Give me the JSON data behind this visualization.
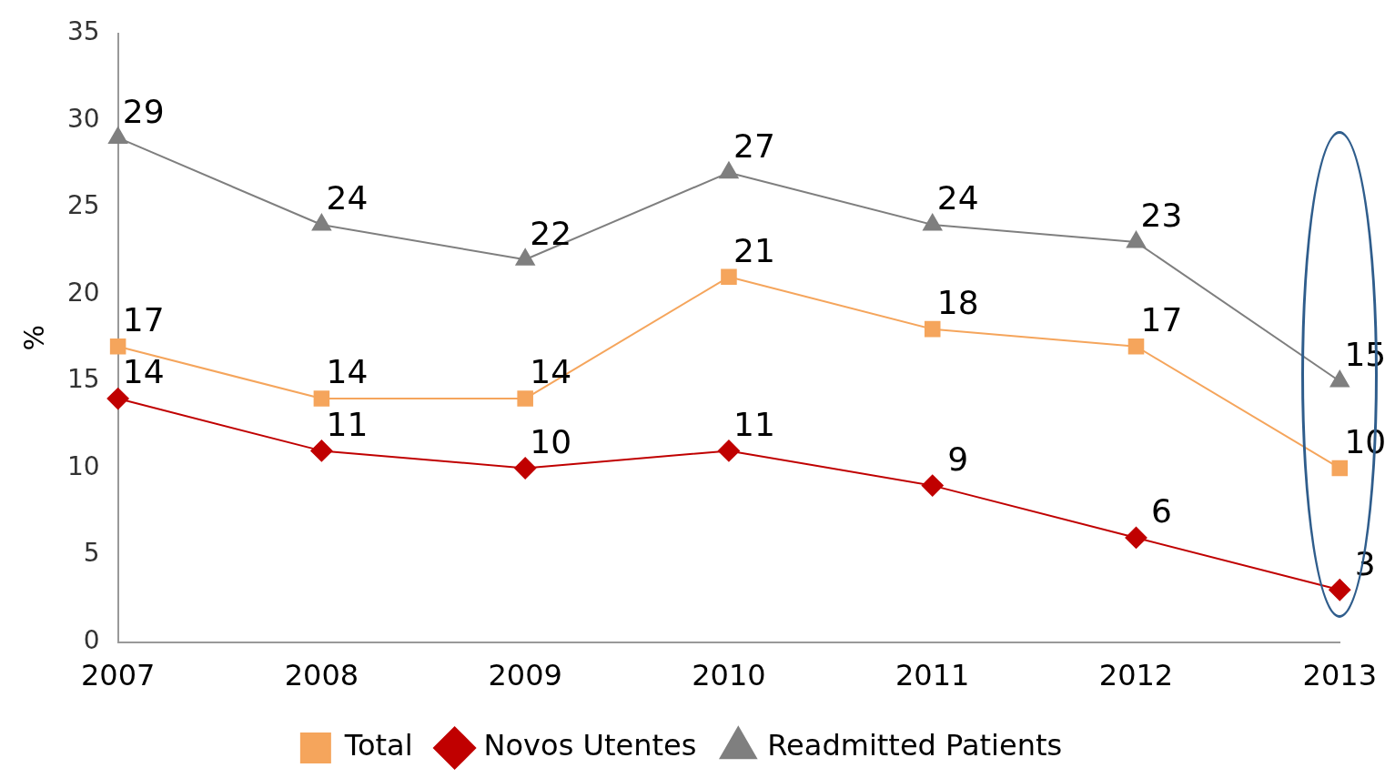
{
  "chart_data": {
    "type": "line",
    "ylabel": "%",
    "categories": [
      "2007",
      "2008",
      "2009",
      "2010",
      "2011",
      "2012",
      "2013"
    ],
    "series": [
      {
        "name": "Total",
        "color": "#f5a55c",
        "marker": "square",
        "values": [
          17,
          14,
          14,
          21,
          18,
          17,
          10
        ]
      },
      {
        "name": "Novos Utentes",
        "color": "#c00000",
        "marker": "diamond",
        "values": [
          14,
          11,
          10,
          11,
          9,
          6,
          3
        ]
      },
      {
        "name": "Readmitted Patients",
        "color": "#7f7f7f",
        "marker": "triangle",
        "values": [
          29,
          24,
          22,
          27,
          24,
          23,
          15
        ]
      }
    ],
    "ylim": [
      0,
      35
    ],
    "yticks": [
      0,
      5,
      10,
      15,
      20,
      25,
      30,
      35
    ],
    "grid": false,
    "legend": "bottom",
    "data_labels": true
  }
}
